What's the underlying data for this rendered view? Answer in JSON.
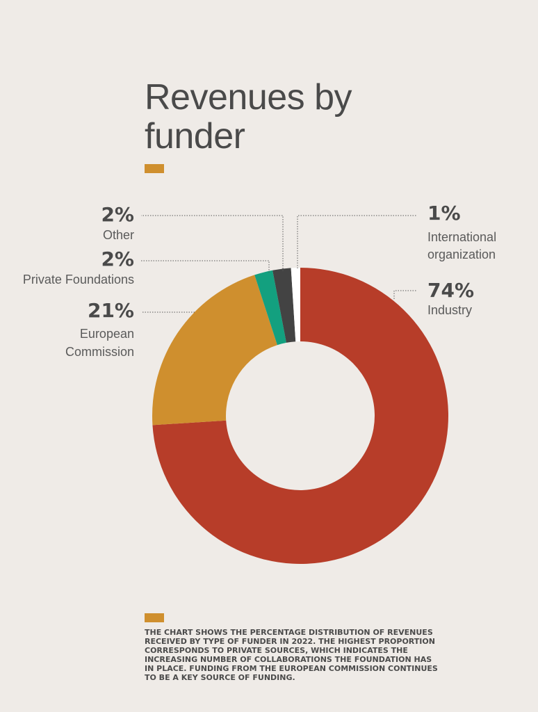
{
  "title": "Revenues by funder",
  "colors": {
    "accent": "#cf8f2e",
    "industry": "#b73d29",
    "european_commission": "#cf8f2e",
    "private_foundations": "#13a07f",
    "other": "#434343",
    "international_organization": "#ffffff",
    "background": "#efebe7"
  },
  "chart_data": {
    "type": "pie",
    "donut": true,
    "title": "Revenues by funder",
    "unit": "%",
    "slices": [
      {
        "label": "Industry",
        "value": 74,
        "display": "74%",
        "color": "#b73d29"
      },
      {
        "label": "European Commission",
        "value": 21,
        "display": "21%",
        "color": "#cf8f2e"
      },
      {
        "label": "Private Foundations",
        "value": 2,
        "display": "2%",
        "color": "#13a07f"
      },
      {
        "label": "Other",
        "value": 2,
        "display": "2%",
        "color": "#434343"
      },
      {
        "label": "International organization",
        "value": 1,
        "display": "1%",
        "color": "#ffffff"
      }
    ]
  },
  "label_lines": {
    "International organization": [
      "International",
      "organization"
    ],
    "Industry": [
      "Industry"
    ],
    "European Commission": [
      "European",
      "Commission"
    ],
    "Private Foundations": [
      "Private Foundations"
    ],
    "Other": [
      "Other"
    ]
  },
  "note": "THE CHART SHOWS THE PERCENTAGE DISTRIBUTION OF REVENUES RECEIVED BY TYPE OF FUNDER IN 2022. THE HIGHEST PROPORTION CORRESPONDS TO PRIVATE SOURCES, WHICH INDICATES THE INCREASING NUMBER OF COLLABORATIONS THE FOUNDATION HAS IN PLACE. FUNDING FROM THE EUROPEAN COMMISSION CONTINUES TO BE A KEY SOURCE OF FUNDING."
}
